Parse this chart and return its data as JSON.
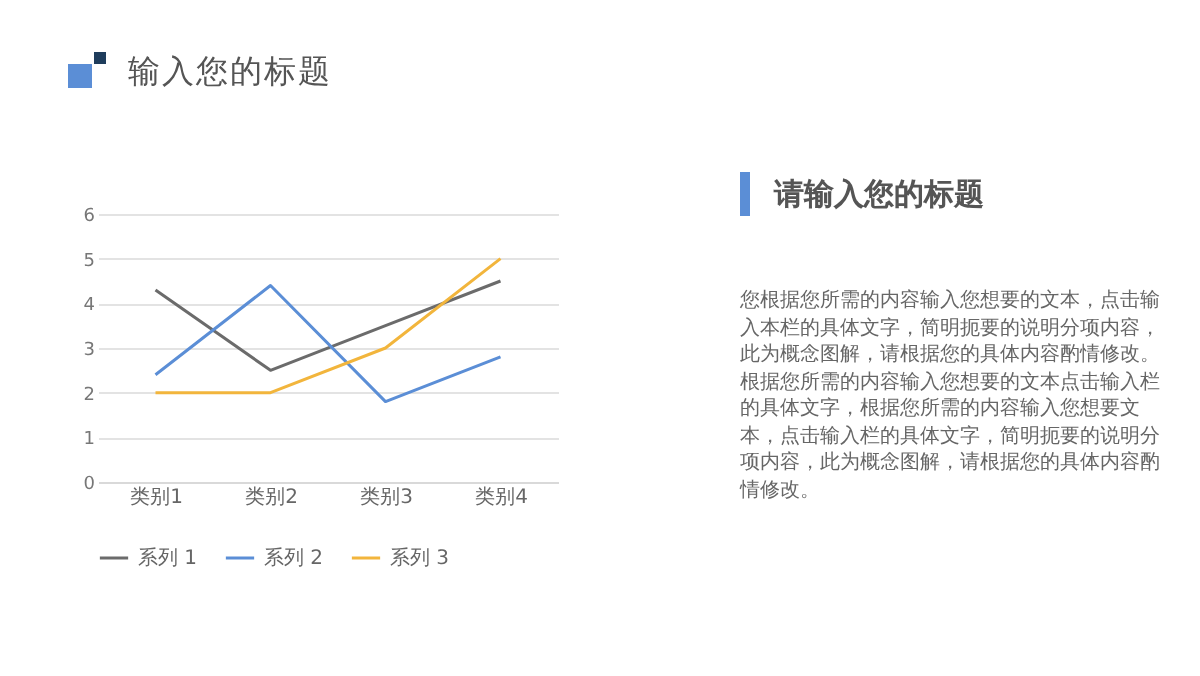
{
  "chart_data": {
    "type": "line",
    "title": "输入您的标题",
    "subtitle": "请输入您的标题",
    "categories": [
      "类别1",
      "类别2",
      "类别3",
      "类别4"
    ],
    "series": [
      {
        "name": "系列 1",
        "color": "#6b6b6b",
        "values": [
          4.3,
          2.5,
          3.5,
          4.5
        ]
      },
      {
        "name": "系列 2",
        "color": "#5b8ed6",
        "values": [
          2.4,
          4.4,
          1.8,
          2.8
        ]
      },
      {
        "name": "系列 3",
        "color": "#f2b53c",
        "values": [
          2,
          2,
          3,
          5
        ]
      }
    ],
    "ylim": [
      0,
      6
    ],
    "yticks": [
      0,
      1,
      2,
      3,
      4,
      5,
      6
    ],
    "grid": "y",
    "legend": "bottom",
    "marker": "none",
    "line_style": "solid",
    "annotations": [
      "您根据您所需的内容输入您想要的文本，点击输入本栏的具体文字，简明扼要的说明分项内容，此为概念图解，请根据您的具体内容酌情修改。",
      "根据您所需的内容输入您想要的文本点击输入栏的具体文字，根据您所需的内容输入您想要文本，点击输入栏的具体文字，简明扼要的说明分项内容，此为概念图解，请根据您的具体内容酌情修改。"
    ]
  }
}
